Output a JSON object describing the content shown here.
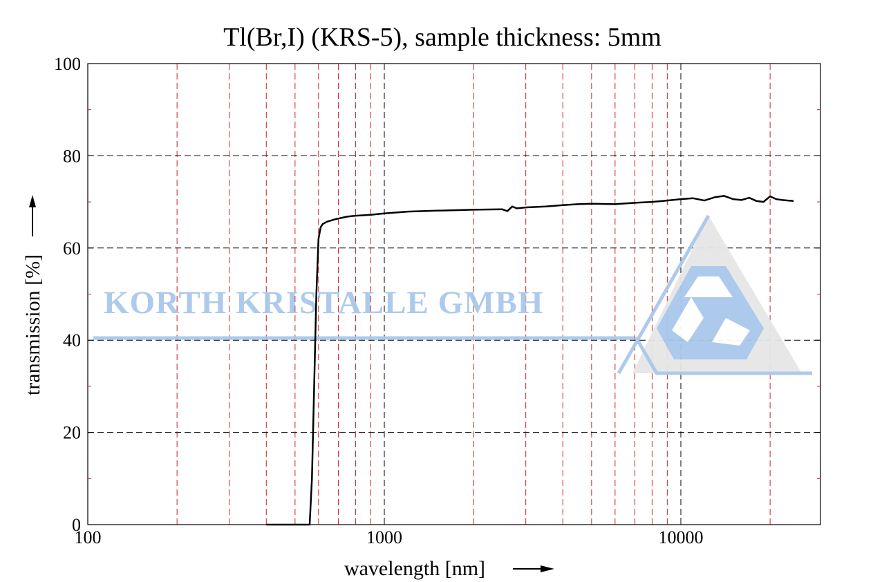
{
  "chart_data": {
    "type": "line",
    "title": "Tl(Br,I) (KRS-5), sample thickness: 5mm",
    "xlabel": "wavelength [nm]",
    "ylabel": "transmission [%]",
    "xscale": "log",
    "xlim": [
      100,
      25000
    ],
    "ylim": [
      0,
      100
    ],
    "x_ticks": [
      100,
      1000,
      10000
    ],
    "x_tick_labels": [
      "100",
      "1000",
      "10000"
    ],
    "y_ticks": [
      0,
      20,
      40,
      60,
      80,
      100
    ],
    "y_tick_labels": [
      "0",
      "20",
      "40",
      "60",
      "80",
      "100"
    ],
    "y_minor_ticks": [
      10,
      30,
      50,
      70,
      90
    ],
    "grid": {
      "major": "black dashed",
      "minor_x": "red dashed",
      "minor_x_values": [
        200,
        300,
        400,
        500,
        600,
        700,
        800,
        900,
        2000,
        3000,
        4000,
        5000,
        6000,
        7000,
        8000,
        9000,
        20000
      ]
    },
    "series": [
      {
        "color": "#000000",
        "x": [
          400,
          500,
          560,
          570,
          580,
          590,
          600,
          610,
          620,
          640,
          680,
          750,
          800,
          900,
          1000,
          1200,
          1500,
          2000,
          2500,
          2600,
          2700,
          2800,
          3000,
          3500,
          4000,
          4500,
          5000,
          6000,
          7000,
          8000,
          9000,
          10000,
          11000,
          12000,
          13000,
          14000,
          15000,
          16000,
          17000,
          18000,
          19000,
          20000,
          21000,
          22000,
          24000
        ],
        "y": [
          0,
          0,
          0,
          10,
          30,
          50,
          62,
          64.5,
          65.2,
          65.7,
          66.2,
          66.8,
          67.0,
          67.2,
          67.5,
          67.9,
          68.1,
          68.3,
          68.4,
          68.0,
          69.0,
          68.6,
          68.8,
          69.0,
          69.3,
          69.5,
          69.6,
          69.5,
          69.8,
          70.0,
          70.3,
          70.6,
          70.8,
          70.3,
          71.0,
          71.3,
          70.6,
          70.4,
          70.9,
          70.2,
          70.0,
          71.2,
          70.6,
          70.4,
          70.2
        ]
      }
    ]
  },
  "watermark": {
    "text": "KORTH KRISTALLE GMBH",
    "color": "#a9c8ec"
  }
}
